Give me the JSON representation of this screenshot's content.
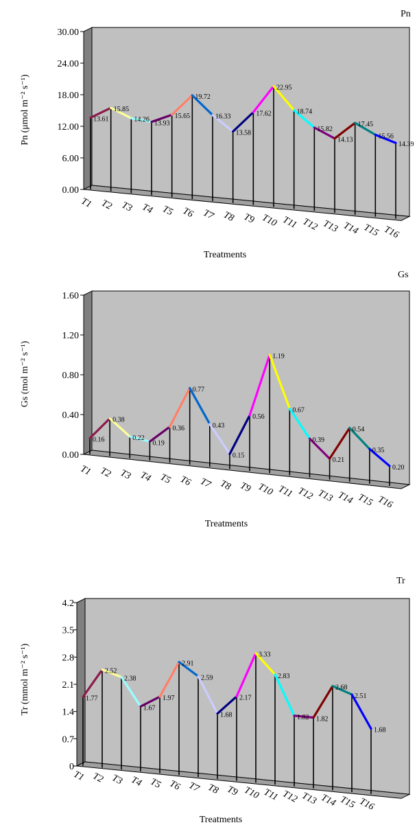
{
  "chart_data": [
    {
      "type": "line",
      "title": "Pn",
      "xlabel": "Treatments",
      "ylabel": "Pn (μmol m⁻² s⁻¹)",
      "ylim": [
        0,
        30
      ],
      "yticks": [
        "0.00",
        "6.00",
        "12.00",
        "18.00",
        "24.00",
        "30.00"
      ],
      "categories": [
        "T1",
        "T2",
        "T3",
        "T4",
        "T5",
        "T6",
        "T7",
        "T8",
        "T9",
        "T10",
        "T11",
        "T12",
        "T13",
        "T14",
        "T15",
        "T16"
      ],
      "values": [
        13.61,
        15.85,
        14.26,
        13.93,
        15.65,
        19.72,
        16.33,
        13.58,
        17.62,
        22.95,
        18.74,
        15.82,
        14.13,
        17.45,
        15.56,
        14.39
      ],
      "labels": [
        "13.61",
        "15.85",
        "14.26",
        "13.93",
        "15.65",
        "19.72",
        "16.33",
        "13.58",
        "17.62",
        "22.95",
        "18.74",
        "15.82",
        "14.13",
        "17.45",
        "15.56",
        "14.39"
      ],
      "grid": false
    },
    {
      "type": "line",
      "title": "Gs",
      "xlabel": "Treatments",
      "ylabel": "Gs (mol m⁻² s⁻¹)",
      "ylim": [
        0,
        1.6
      ],
      "yticks": [
        "0.00",
        "0.40",
        "0.80",
        "1.20",
        "1.60"
      ],
      "categories": [
        "T1",
        "T2",
        "T3",
        "T4",
        "T5",
        "T6",
        "T7",
        "T8",
        "T9",
        "T10",
        "T11",
        "T12",
        "T13",
        "T14",
        "T15",
        "T16"
      ],
      "values": [
        0.16,
        0.38,
        0.22,
        0.19,
        0.36,
        0.77,
        0.43,
        0.15,
        0.56,
        1.19,
        0.67,
        0.39,
        0.21,
        0.54,
        0.35,
        0.2
      ],
      "labels": [
        "0.16",
        "0.38",
        "0.22",
        "0.19",
        "0.36",
        "0.77",
        "0.43",
        "0.15",
        "0.56",
        "1.19",
        "0.67",
        "0.39",
        "0.21",
        "0.54",
        "0.35",
        "0.20"
      ],
      "grid": false
    },
    {
      "type": "line",
      "title": "Tr",
      "xlabel": "Treatments",
      "ylabel": "Tr (mmol m⁻² s⁻¹)",
      "ylim": [
        0,
        4.2
      ],
      "yticks": [
        "0",
        "0.7",
        "1.4",
        "2.1",
        "2.8",
        "3.5",
        "4.2"
      ],
      "categories": [
        "T1",
        "T2",
        "T3",
        "T4",
        "T5",
        "T6",
        "T7",
        "T8",
        "T9",
        "T10",
        "T11",
        "T12",
        "T13",
        "T14",
        "T15",
        "T16"
      ],
      "values": [
        1.77,
        2.52,
        2.38,
        1.67,
        1.97,
        2.91,
        2.59,
        1.68,
        2.17,
        3.33,
        2.83,
        1.82,
        1.82,
        2.68,
        2.51,
        1.68
      ],
      "labels": [
        "1.77",
        "2.52",
        "2.38",
        "1.67",
        "1.97",
        "2.91",
        "2.59",
        "1.68",
        "2.17",
        "3.33",
        "2.83",
        "1.82",
        "1.82",
        "2.68",
        "2.51",
        "1.68"
      ],
      "grid": false
    }
  ],
  "segment_colors": [
    "#8b1a4a",
    "#ffff99",
    "#99ffff",
    "#660066",
    "#ff7f66",
    "#0066cc",
    "#ccccff",
    "#000080",
    "#ff00ff",
    "#ffff00",
    "#00ffff",
    "#800080",
    "#800000",
    "#008080",
    "#0000ff"
  ],
  "wall_color": "#c0c0c0",
  "side_color": "#808080"
}
